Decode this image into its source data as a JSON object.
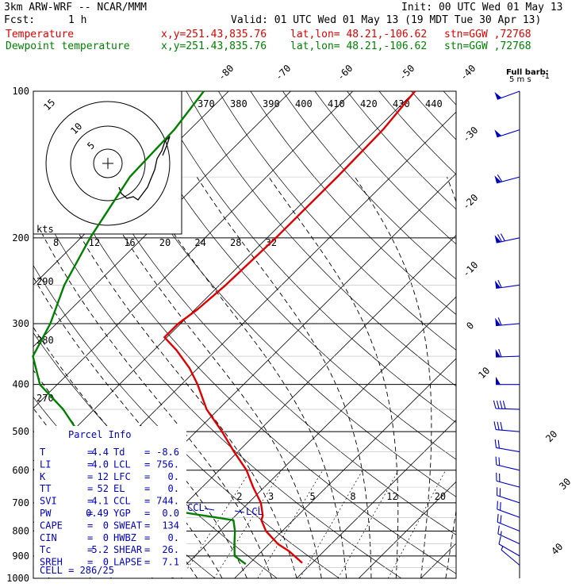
{
  "header": {
    "model": "3km ARW-WRF -- NCAR/MMM",
    "init": "Init: 00 UTC Wed 01 May 13",
    "fcst_label": "Fcst:",
    "fcst_value": "1 h",
    "valid": "Valid: 01 UTC Wed 01 May 13 (19 MDT Tue 30 Apr 13)"
  },
  "legend": {
    "temperature": {
      "name": "Temperature",
      "xy": "x,y=251.43,835.76",
      "latlon": "lat,lon= 48.21,-106.62",
      "stn": "stn=GGW ,72768",
      "color": "#e00000"
    },
    "dewpoint": {
      "name": "Dewpoint temperature",
      "xy": "x,y=251.43,835.76",
      "latlon": "lat,lon= 48.21,-106.62",
      "stn": "stn=GGW ,72768",
      "color": "#008000"
    }
  },
  "barb_legend": {
    "line1": "Full barb:",
    "line2": "5 m s"
  },
  "hodograph": {
    "units": "kts",
    "rings": [
      "5",
      "10",
      "15"
    ]
  },
  "parcel_info": {
    "title": "Parcel Info",
    "rows": [
      {
        "k1": "T",
        "v1": "4.4",
        "k2": "Td",
        "v2": "-8.6"
      },
      {
        "k1": "LI",
        "v1": "4.0",
        "k2": "LCL",
        "v2": "756."
      },
      {
        "k1": "K",
        "v1": "12",
        "k2": "LFC",
        "v2": "0."
      },
      {
        "k1": "TT",
        "v1": "52",
        "k2": "EL",
        "v2": "0."
      },
      {
        "k1": "SVI",
        "v1": "4.1",
        "k2": "CCL",
        "v2": "744."
      },
      {
        "k1": "PW",
        "v1": "0.49",
        "k2": "YGP",
        "v2": "0.0"
      },
      {
        "k1": "CAPE",
        "v1": "0",
        "k2": "SWEAT",
        "v2": "134"
      },
      {
        "k1": "CIN",
        "v1": "0",
        "k2": "HWBZ",
        "v2": "0."
      },
      {
        "k1": "Tc",
        "v1": "5.2",
        "k2": "SHEAR",
        "v2": "26."
      },
      {
        "k1": "SREH",
        "v1": "0",
        "k2": "LAPSE",
        "v2": "7.1"
      }
    ],
    "cell": "CELL = 286/25",
    "ccl_marker": "CCL",
    "lcl_marker": "LCL"
  },
  "chart_data": {
    "type": "line",
    "subtype": "skew-T log-p diagram",
    "y_axis": {
      "label": "",
      "unit": "hPa",
      "scale": "log",
      "range": [
        1000,
        100
      ],
      "ticks": [
        100,
        200,
        300,
        400,
        500,
        600,
        700,
        800,
        900,
        1000
      ]
    },
    "isotherm_labels": [
      "-80",
      "-70",
      "-60",
      "-50",
      "-40",
      "-30",
      "-20",
      "-10",
      "0",
      "10",
      "20",
      "30",
      "40"
    ],
    "dry_adiabat_labels": [
      "270",
      "280",
      "290"
    ],
    "theta_top_labels": [
      "370",
      "380",
      "390",
      "400",
      "410",
      "420",
      "430",
      "440"
    ],
    "hodo_speed_labels": [
      "8",
      "12",
      "16",
      "20",
      "24",
      "28",
      "32"
    ],
    "mixing_ratio_labels": [
      "2",
      "3",
      "5",
      "8",
      "12",
      "20"
    ],
    "series": [
      {
        "name": "Temperature",
        "color": "#e00000",
        "points": [
          [
            930,
            8.4
          ],
          [
            880,
            4.4
          ],
          [
            850,
            1.4
          ],
          [
            800,
            -2.6
          ],
          [
            760,
            -5.1
          ],
          [
            744,
            -5.6
          ],
          [
            700,
            -8.0
          ],
          [
            650,
            -11.8
          ],
          [
            600,
            -15.6
          ],
          [
            550,
            -20.6
          ],
          [
            500,
            -25.8
          ],
          [
            450,
            -31.9
          ],
          [
            400,
            -37.4
          ],
          [
            370,
            -41.4
          ],
          [
            340,
            -46.4
          ],
          [
            320,
            -50.4
          ],
          [
            300,
            -50.4
          ],
          [
            280,
            -49.6
          ],
          [
            250,
            -49.0
          ],
          [
            200,
            -48.6
          ],
          [
            150,
            -48.6
          ],
          [
            120,
            -48.9
          ],
          [
            100,
            -50.0
          ]
        ]
      },
      {
        "name": "Dewpoint temperature",
        "color": "#008000",
        "points": [
          [
            935,
            -0.5
          ],
          [
            900,
            -3.6
          ],
          [
            850,
            -5.6
          ],
          [
            800,
            -7.6
          ],
          [
            760,
            -9.6
          ],
          [
            744,
            -15.0
          ],
          [
            700,
            -30.2
          ],
          [
            650,
            -35.5
          ],
          [
            600,
            -39.1
          ],
          [
            550,
            -44.2
          ],
          [
            500,
            -49.0
          ],
          [
            450,
            -55.0
          ],
          [
            400,
            -62.8
          ],
          [
            350,
            -68.5
          ],
          [
            300,
            -71.0
          ],
          [
            250,
            -75.0
          ],
          [
            200,
            -78.5
          ],
          [
            150,
            -82.0
          ],
          [
            120,
            -82.5
          ],
          [
            100,
            -84.0
          ]
        ]
      }
    ],
    "wind_barbs_unit": "m s-1",
    "wind_barbs": [
      {
        "p": 940,
        "dir": 310,
        "spd": 4
      },
      {
        "p": 900,
        "dir": 300,
        "spd": 7
      },
      {
        "p": 850,
        "dir": 295,
        "spd": 9
      },
      {
        "p": 800,
        "dir": 292,
        "spd": 10
      },
      {
        "p": 750,
        "dir": 290,
        "spd": 11
      },
      {
        "p": 700,
        "dir": 288,
        "spd": 11
      },
      {
        "p": 650,
        "dir": 285,
        "spd": 10
      },
      {
        "p": 600,
        "dir": 283,
        "spd": 10
      },
      {
        "p": 550,
        "dir": 280,
        "spd": 10
      },
      {
        "p": 500,
        "dir": 275,
        "spd": 15
      },
      {
        "p": 450,
        "dir": 272,
        "spd": 20
      },
      {
        "p": 400,
        "dir": 270,
        "spd": 25
      },
      {
        "p": 350,
        "dir": 268,
        "spd": 30
      },
      {
        "p": 300,
        "dir": 265,
        "spd": 30
      },
      {
        "p": 250,
        "dir": 262,
        "spd": 30
      },
      {
        "p": 200,
        "dir": 258,
        "spd": 35
      },
      {
        "p": 150,
        "dir": 255,
        "spd": 30
      },
      {
        "p": 120,
        "dir": 252,
        "spd": 25
      },
      {
        "p": 100,
        "dir": 250,
        "spd": 25
      }
    ]
  }
}
